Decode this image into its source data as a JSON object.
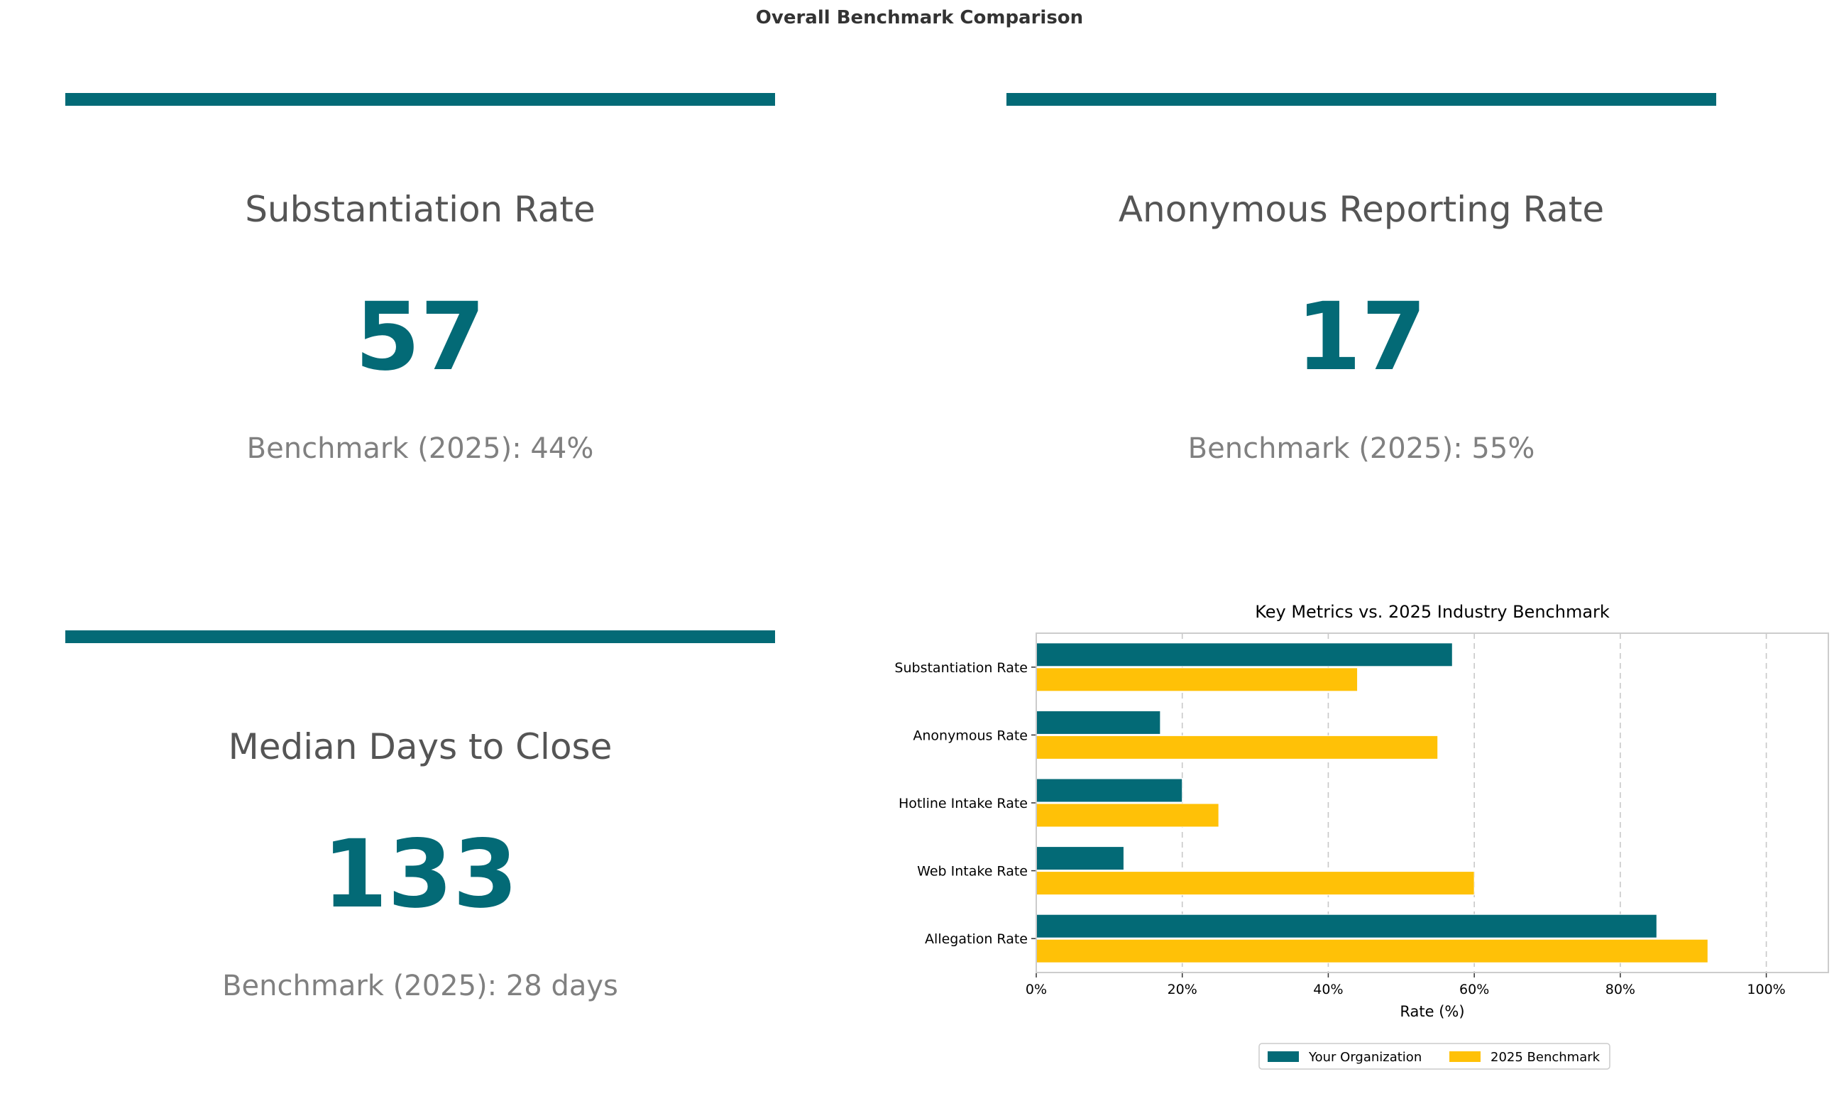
{
  "title": "Overall Benchmark Comparison",
  "colors": {
    "primary": "#036A76",
    "benchmark": "#FFC107",
    "label": "#555555",
    "muted": "#808080"
  },
  "kpis": [
    {
      "label": "Substantiation Rate",
      "value": "57",
      "benchmark": "Benchmark (2025): 44%"
    },
    {
      "label": "Anonymous Reporting Rate",
      "value": "17",
      "benchmark": "Benchmark (2025): 55%"
    },
    {
      "label": "Median Days to Close",
      "value": "133",
      "benchmark": "Benchmark (2025): 28 days"
    }
  ],
  "chart_data": {
    "type": "bar",
    "orientation": "horizontal",
    "title": "Key Metrics vs. 2025 Industry Benchmark",
    "xlabel": "Rate (%)",
    "ylabel": "",
    "xlim": [
      0,
      108.5
    ],
    "xticks": [
      0,
      20,
      40,
      60,
      80,
      100
    ],
    "xtick_labels": [
      "0%",
      "20%",
      "40%",
      "60%",
      "80%",
      "100%"
    ],
    "grid": "x-dashed",
    "legend_position": "bottom-center",
    "categories": [
      "Substantiation Rate",
      "Anonymous Rate",
      "Hotline Intake Rate",
      "Web Intake Rate",
      "Allegation Rate"
    ],
    "series": [
      {
        "name": "Your Organization",
        "color": "#036A76",
        "values": [
          57,
          17,
          20,
          12,
          85
        ]
      },
      {
        "name": "2025 Benchmark",
        "color": "#FFC107",
        "values": [
          44,
          55,
          25,
          60,
          92
        ]
      }
    ]
  }
}
